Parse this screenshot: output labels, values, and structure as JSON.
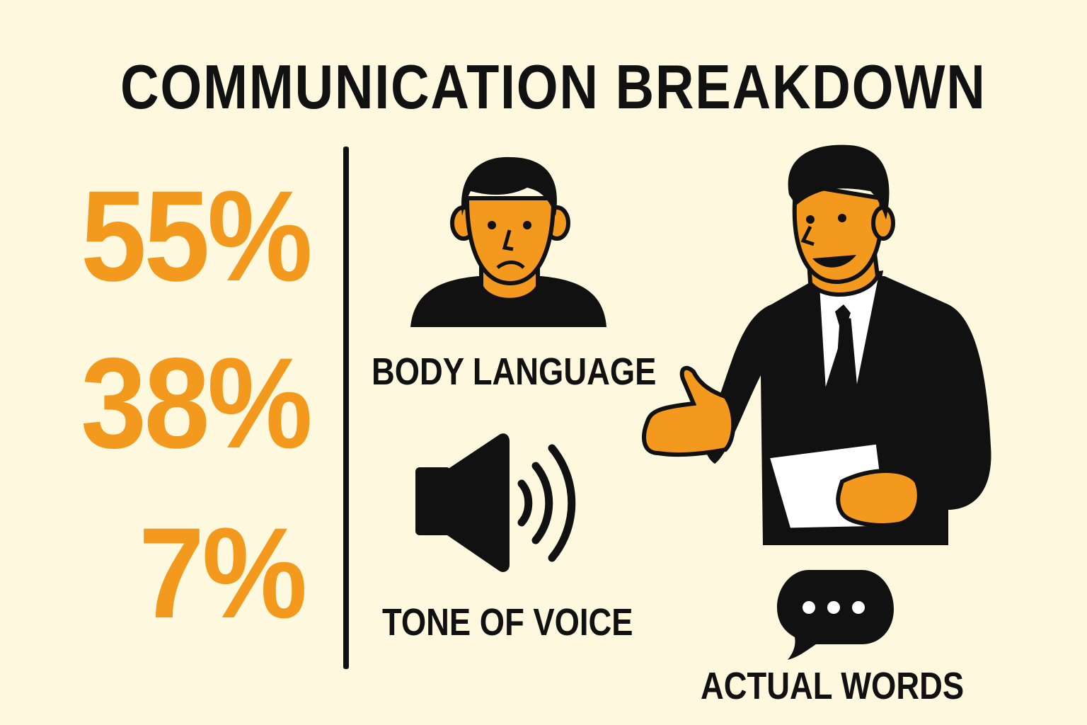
{
  "title": "COMMUNICATION BREAKDOWN",
  "stats": [
    {
      "percent": "55%",
      "label": "BODY LANGUAGE",
      "icon": "person-face-icon"
    },
    {
      "percent": "38%",
      "label": "TONE OF VOICE",
      "icon": "speaker-icon"
    },
    {
      "percent": "7%",
      "label": "ACTUAL WORDS",
      "icon": "speech-bubble-icon"
    }
  ],
  "colors": {
    "background": "#fef8df",
    "accent": "#f39a1e",
    "ink": "#111111"
  }
}
